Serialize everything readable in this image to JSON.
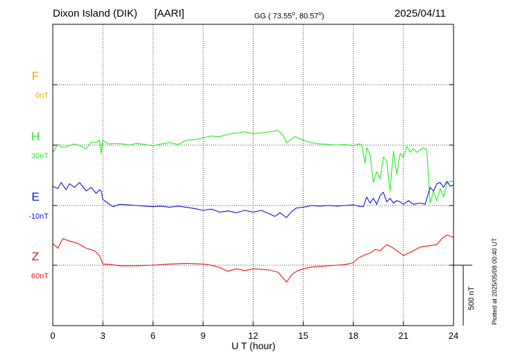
{
  "header": {
    "station": "Dixon Island (DIK)",
    "institute": "[AARI]",
    "coords_prefix": "GG ( 73.55",
    "coords_mid": ",  80.57",
    "coords_suffix": ")",
    "degree_symbol": "o",
    "date": "2025/04/11"
  },
  "side_note": "Plotted at 2025/05/08 00:40 UT",
  "chart_data": {
    "type": "line",
    "xlabel": "U T (hour)",
    "xlim": [
      0,
      24
    ],
    "x_ticks": [
      0,
      3,
      6,
      9,
      12,
      15,
      18,
      21,
      24
    ],
    "grid": true,
    "scale_bar": {
      "label": "500 nT",
      "value_nT": 500
    },
    "series": [
      {
        "name": "F",
        "offset_label": "0nT",
        "color": "#f5a500",
        "points": []
      },
      {
        "name": "H",
        "offset_label": "30nT",
        "color": "#22ee22",
        "points": [
          [
            0,
            -60
          ],
          [
            0.3,
            5
          ],
          [
            0.6,
            -20
          ],
          [
            1.0,
            -5
          ],
          [
            1.3,
            10
          ],
          [
            1.6,
            -5
          ],
          [
            2.0,
            -30
          ],
          [
            2.3,
            25
          ],
          [
            2.6,
            20
          ],
          [
            2.8,
            40
          ],
          [
            2.9,
            -70
          ],
          [
            3.0,
            40
          ],
          [
            3.3,
            10
          ],
          [
            3.8,
            15
          ],
          [
            4.2,
            10
          ],
          [
            4.6,
            0
          ],
          [
            5.0,
            15
          ],
          [
            5.5,
            5
          ],
          [
            6.0,
            -5
          ],
          [
            6.5,
            10
          ],
          [
            7.0,
            20
          ],
          [
            7.5,
            5
          ],
          [
            8.0,
            40
          ],
          [
            8.5,
            45
          ],
          [
            9.0,
            60
          ],
          [
            9.5,
            75
          ],
          [
            10.0,
            70
          ],
          [
            10.5,
            90
          ],
          [
            11.0,
            100
          ],
          [
            11.5,
            110
          ],
          [
            12.0,
            95
          ],
          [
            12.5,
            100
          ],
          [
            13.0,
            110
          ],
          [
            13.5,
            120
          ],
          [
            13.8,
            80
          ],
          [
            14.0,
            20
          ],
          [
            14.5,
            70
          ],
          [
            15.0,
            40
          ],
          [
            15.5,
            20
          ],
          [
            16.0,
            10
          ],
          [
            16.5,
            5
          ],
          [
            17.0,
            0
          ],
          [
            17.5,
            5
          ],
          [
            18.0,
            -5
          ],
          [
            18.3,
            10
          ],
          [
            18.5,
            5
          ],
          [
            18.7,
            -150
          ],
          [
            18.8,
            -20
          ],
          [
            19.0,
            -80
          ],
          [
            19.2,
            -310
          ],
          [
            19.4,
            -220
          ],
          [
            19.6,
            -280
          ],
          [
            19.8,
            -100
          ],
          [
            20.0,
            -130
          ],
          [
            20.2,
            -380
          ],
          [
            20.4,
            -50
          ],
          [
            20.6,
            -240
          ],
          [
            20.8,
            -70
          ],
          [
            21.0,
            -100
          ],
          [
            21.2,
            -10
          ],
          [
            21.4,
            -60
          ],
          [
            21.6,
            -30
          ],
          [
            21.8,
            -60
          ],
          [
            22.0,
            -40
          ],
          [
            22.2,
            -20
          ],
          [
            22.4,
            -40
          ],
          [
            22.6,
            -480
          ],
          [
            22.8,
            -380
          ],
          [
            23.0,
            -460
          ],
          [
            23.2,
            -360
          ],
          [
            23.4,
            -430
          ],
          [
            23.6,
            -320
          ],
          [
            23.8,
            -300
          ],
          [
            24.0,
            -300
          ]
        ]
      },
      {
        "name": "E",
        "offset_label": "-10nT",
        "color": "#1111dd",
        "points": [
          [
            0,
            160
          ],
          [
            0.3,
            140
          ],
          [
            0.5,
            190
          ],
          [
            0.8,
            130
          ],
          [
            1.0,
            180
          ],
          [
            1.3,
            150
          ],
          [
            1.6,
            190
          ],
          [
            2.0,
            120
          ],
          [
            2.3,
            150
          ],
          [
            2.6,
            100
          ],
          [
            2.8,
            130
          ],
          [
            2.9,
            120
          ],
          [
            3.0,
            50
          ],
          [
            3.3,
            20
          ],
          [
            3.6,
            -10
          ],
          [
            4.0,
            10
          ],
          [
            4.5,
            5
          ],
          [
            5.0,
            0
          ],
          [
            5.5,
            -5
          ],
          [
            6.0,
            -10
          ],
          [
            6.5,
            -5
          ],
          [
            7.0,
            -15
          ],
          [
            7.5,
            -5
          ],
          [
            8.0,
            -15
          ],
          [
            8.5,
            -25
          ],
          [
            9.0,
            -40
          ],
          [
            9.5,
            -30
          ],
          [
            10.0,
            -55
          ],
          [
            10.5,
            -45
          ],
          [
            11.0,
            -60
          ],
          [
            11.5,
            -40
          ],
          [
            12.0,
            -55
          ],
          [
            12.5,
            -40
          ],
          [
            13.0,
            -70
          ],
          [
            13.3,
            -90
          ],
          [
            13.6,
            -60
          ],
          [
            14.0,
            -100
          ],
          [
            14.3,
            -50
          ],
          [
            14.6,
            -20
          ],
          [
            15.0,
            -15
          ],
          [
            15.5,
            0
          ],
          [
            16.0,
            -5
          ],
          [
            16.5,
            0
          ],
          [
            17.0,
            -5
          ],
          [
            17.5,
            0
          ],
          [
            18.0,
            5
          ],
          [
            18.3,
            -5
          ],
          [
            18.6,
            -10
          ],
          [
            18.8,
            70
          ],
          [
            19.0,
            20
          ],
          [
            19.2,
            60
          ],
          [
            19.4,
            10
          ],
          [
            19.6,
            80
          ],
          [
            19.8,
            110
          ],
          [
            20.0,
            30
          ],
          [
            20.2,
            60
          ],
          [
            20.4,
            20
          ],
          [
            20.6,
            40
          ],
          [
            20.8,
            30
          ],
          [
            21.0,
            10
          ],
          [
            21.3,
            40
          ],
          [
            21.6,
            10
          ],
          [
            22.0,
            20
          ],
          [
            22.3,
            10
          ],
          [
            22.6,
            150
          ],
          [
            22.8,
            120
          ],
          [
            23.0,
            180
          ],
          [
            23.2,
            190
          ],
          [
            23.4,
            150
          ],
          [
            23.6,
            200
          ],
          [
            23.8,
            160
          ],
          [
            24.0,
            170
          ]
        ]
      },
      {
        "name": "Z",
        "offset_label": "60nT",
        "color": "#ee1111",
        "points": [
          [
            0,
            180
          ],
          [
            0.3,
            140
          ],
          [
            0.6,
            220
          ],
          [
            1.0,
            200
          ],
          [
            1.5,
            180
          ],
          [
            2.0,
            140
          ],
          [
            2.5,
            120
          ],
          [
            2.8,
            80
          ],
          [
            3.0,
            10
          ],
          [
            3.5,
            5
          ],
          [
            4.0,
            -5
          ],
          [
            5.0,
            -5
          ],
          [
            6.0,
            0
          ],
          [
            7.0,
            10
          ],
          [
            8.0,
            15
          ],
          [
            9.0,
            10
          ],
          [
            9.5,
            0
          ],
          [
            10.0,
            -20
          ],
          [
            10.5,
            -50
          ],
          [
            11.0,
            -30
          ],
          [
            11.5,
            -45
          ],
          [
            12.0,
            -30
          ],
          [
            12.5,
            -35
          ],
          [
            13.0,
            -40
          ],
          [
            13.5,
            -60
          ],
          [
            14.0,
            -140
          ],
          [
            14.3,
            -80
          ],
          [
            14.6,
            -50
          ],
          [
            15.0,
            -30
          ],
          [
            15.5,
            -15
          ],
          [
            16.0,
            -10
          ],
          [
            16.5,
            -5
          ],
          [
            17.0,
            0
          ],
          [
            17.5,
            5
          ],
          [
            18.0,
            20
          ],
          [
            18.3,
            60
          ],
          [
            18.6,
            80
          ],
          [
            19.0,
            100
          ],
          [
            19.3,
            130
          ],
          [
            19.6,
            120
          ],
          [
            20.0,
            170
          ],
          [
            20.3,
            150
          ],
          [
            20.6,
            120
          ],
          [
            21.0,
            80
          ],
          [
            21.3,
            100
          ],
          [
            21.6,
            120
          ],
          [
            22.0,
            150
          ],
          [
            22.5,
            160
          ],
          [
            23.0,
            170
          ],
          [
            23.3,
            220
          ],
          [
            23.6,
            250
          ],
          [
            24.0,
            230
          ]
        ]
      }
    ]
  }
}
